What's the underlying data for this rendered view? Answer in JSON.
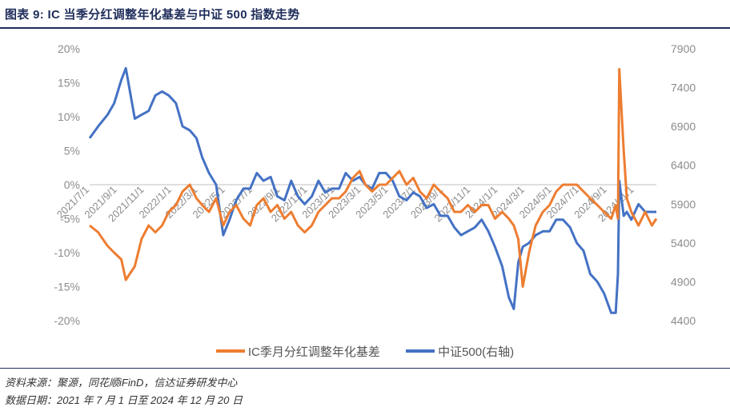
{
  "title": "图表 9:  IC 当季分红调整年化基差与中证 500 指数走势",
  "legend": {
    "series1": "IC季月分红调整年化基差",
    "series2": "中证500(右轴)"
  },
  "colors": {
    "series1": "#ed7d31",
    "series2": "#4472c4",
    "title": "#1f2d5a"
  },
  "footer": {
    "source": "资料来源：聚源，同花顺iFinD，信达证券研发中心",
    "date_range": "数据日期：2021 年 7 月 1 日至 2024 年 12 月 20 日"
  },
  "chart_data": {
    "type": "line",
    "x_ticks": [
      "2021/7/1",
      "2021/9/1",
      "2021/11/1",
      "2022/1/1",
      "2022/3/1",
      "2022/5/1",
      "2022/7/1",
      "2022/9/1",
      "2022/11/1",
      "2023/1/1",
      "2023/3/1",
      "2023/5/1",
      "2023/7/1",
      "2023/9/1",
      "2023/11/1",
      "2024/1/1",
      "2024/3/1",
      "2024/5/1",
      "2024/7/1",
      "2024/9/1",
      "2024/11/1"
    ],
    "x_start": "2021/7/1",
    "x_end": "2024/12/20",
    "y_left": {
      "ticks": [
        "-20%",
        "-15%",
        "-10%",
        "-5%",
        "0%",
        "5%",
        "10%",
        "15%",
        "20%"
      ],
      "ylim": [
        -20,
        20
      ],
      "unit": "%"
    },
    "y_right": {
      "ticks": [
        "4400",
        "4900",
        "5400",
        "5900",
        "6400",
        "6900",
        "7400",
        "7900"
      ],
      "ylim": [
        4400,
        7900
      ]
    },
    "series": [
      {
        "name": "IC季月分红调整年化基差",
        "axis": "left",
        "x": [
          "2021/7/1",
          "2021/7/20",
          "2021/8/10",
          "2021/8/25",
          "2021/9/10",
          "2021/9/20",
          "2021/10/10",
          "2021/10/25",
          "2021/11/10",
          "2021/11/25",
          "2021/12/10",
          "2021/12/25",
          "2022/1/10",
          "2022/1/25",
          "2022/2/10",
          "2022/2/25",
          "2022/3/10",
          "2022/3/25",
          "2022/4/10",
          "2022/4/26",
          "2022/5/10",
          "2022/5/25",
          "2022/6/10",
          "2022/6/25",
          "2022/7/10",
          "2022/7/25",
          "2022/8/10",
          "2022/8/25",
          "2022/9/10",
          "2022/9/25",
          "2022/10/10",
          "2022/10/25",
          "2022/11/10",
          "2022/11/25",
          "2022/12/10",
          "2022/12/25",
          "2023/1/10",
          "2023/1/25",
          "2023/2/10",
          "2023/2/25",
          "2023/3/10",
          "2023/3/25",
          "2023/4/10",
          "2023/4/25",
          "2023/5/10",
          "2023/5/25",
          "2023/6/10",
          "2023/6/25",
          "2023/7/10",
          "2023/7/25",
          "2023/8/10",
          "2023/8/25",
          "2023/9/10",
          "2023/9/25",
          "2023/10/10",
          "2023/10/25",
          "2023/11/10",
          "2023/11/25",
          "2023/12/10",
          "2023/12/25",
          "2024/1/10",
          "2024/1/25",
          "2024/2/5",
          "2024/2/15",
          "2024/2/25",
          "2024/3/10",
          "2024/3/25",
          "2024/4/10",
          "2024/4/25",
          "2024/5/10",
          "2024/5/25",
          "2024/6/10",
          "2024/6/25",
          "2024/7/10",
          "2024/7/25",
          "2024/8/10",
          "2024/8/25",
          "2024/9/10",
          "2024/9/20",
          "2024/9/25",
          "2024/9/28",
          "2024/10/8",
          "2024/10/15",
          "2024/10/25",
          "2024/11/10",
          "2024/11/25",
          "2024/12/10",
          "2024/12/20"
        ],
        "values": [
          -6,
          -7,
          -9,
          -10,
          -11,
          -14,
          -12,
          -8,
          -6,
          -7,
          -6,
          -4,
          -3,
          -1,
          0,
          -2,
          -3,
          -4,
          -2,
          -6,
          -4,
          -3,
          -5,
          -6,
          -3,
          -2,
          -4,
          -3,
          -5,
          -4,
          -6,
          -7,
          -6,
          -4,
          -3,
          -2,
          -2,
          -1,
          1,
          2,
          0,
          -1,
          0,
          0,
          1,
          2,
          0,
          1,
          -1,
          -2,
          0,
          -1,
          -2,
          -4,
          -4,
          -3,
          -4,
          -3,
          -3,
          -5,
          -4,
          -5,
          -6,
          -8,
          -15,
          -10,
          -6,
          -4,
          -3,
          -1,
          0,
          0,
          0,
          -1,
          -2,
          -3,
          -4,
          -5,
          -3,
          -5,
          17,
          5,
          -2,
          -4,
          -6,
          -4,
          -6,
          -5
        ]
      },
      {
        "name": "中证500(右轴)",
        "axis": "right",
        "x": [
          "2021/7/1",
          "2021/7/20",
          "2021/8/10",
          "2021/8/25",
          "2021/9/10",
          "2021/9/20",
          "2021/10/10",
          "2021/10/25",
          "2021/11/10",
          "2021/11/25",
          "2021/12/10",
          "2021/12/25",
          "2022/1/10",
          "2022/1/25",
          "2022/2/10",
          "2022/2/25",
          "2022/3/10",
          "2022/3/25",
          "2022/4/10",
          "2022/4/26",
          "2022/5/10",
          "2022/5/25",
          "2022/6/10",
          "2022/6/25",
          "2022/7/10",
          "2022/7/25",
          "2022/8/10",
          "2022/8/25",
          "2022/9/10",
          "2022/9/25",
          "2022/10/10",
          "2022/10/25",
          "2022/11/10",
          "2022/11/25",
          "2022/12/10",
          "2022/12/25",
          "2023/1/10",
          "2023/1/25",
          "2023/2/10",
          "2023/2/25",
          "2023/3/10",
          "2023/3/25",
          "2023/4/10",
          "2023/4/25",
          "2023/5/10",
          "2023/5/25",
          "2023/6/10",
          "2023/6/25",
          "2023/7/10",
          "2023/7/25",
          "2023/8/10",
          "2023/8/25",
          "2023/9/10",
          "2023/9/25",
          "2023/10/10",
          "2023/10/25",
          "2023/11/10",
          "2023/11/25",
          "2023/12/10",
          "2023/12/25",
          "2024/1/10",
          "2024/1/25",
          "2024/2/5",
          "2024/2/15",
          "2024/2/25",
          "2024/3/10",
          "2024/3/25",
          "2024/4/10",
          "2024/4/25",
          "2024/5/10",
          "2024/5/25",
          "2024/6/10",
          "2024/6/25",
          "2024/7/10",
          "2024/7/25",
          "2024/8/10",
          "2024/8/25",
          "2024/9/10",
          "2024/9/20",
          "2024/9/25",
          "2024/9/28",
          "2024/10/8",
          "2024/10/15",
          "2024/10/25",
          "2024/11/10",
          "2024/11/25",
          "2024/12/10",
          "2024/12/20"
        ],
        "values": [
          6750,
          6900,
          7050,
          7200,
          7500,
          7650,
          7000,
          7050,
          7100,
          7300,
          7350,
          7300,
          7200,
          6900,
          6850,
          6750,
          6500,
          6300,
          6150,
          5500,
          5700,
          5950,
          6100,
          6100,
          6300,
          6200,
          6250,
          6000,
          5950,
          6200,
          6000,
          5900,
          6000,
          6200,
          6050,
          6100,
          6100,
          6300,
          6200,
          6250,
          6150,
          6100,
          6300,
          6300,
          6200,
          6000,
          5950,
          6050,
          6000,
          5850,
          5900,
          5750,
          5750,
          5600,
          5500,
          5550,
          5600,
          5700,
          5550,
          5350,
          5100,
          4700,
          4550,
          5150,
          5350,
          5400,
          5500,
          5550,
          5550,
          5700,
          5700,
          5600,
          5400,
          5300,
          5000,
          4900,
          4750,
          4500,
          4500,
          5000,
          6200,
          5750,
          5800,
          5700,
          5900,
          5800,
          5800,
          5800
        ]
      }
    ]
  }
}
